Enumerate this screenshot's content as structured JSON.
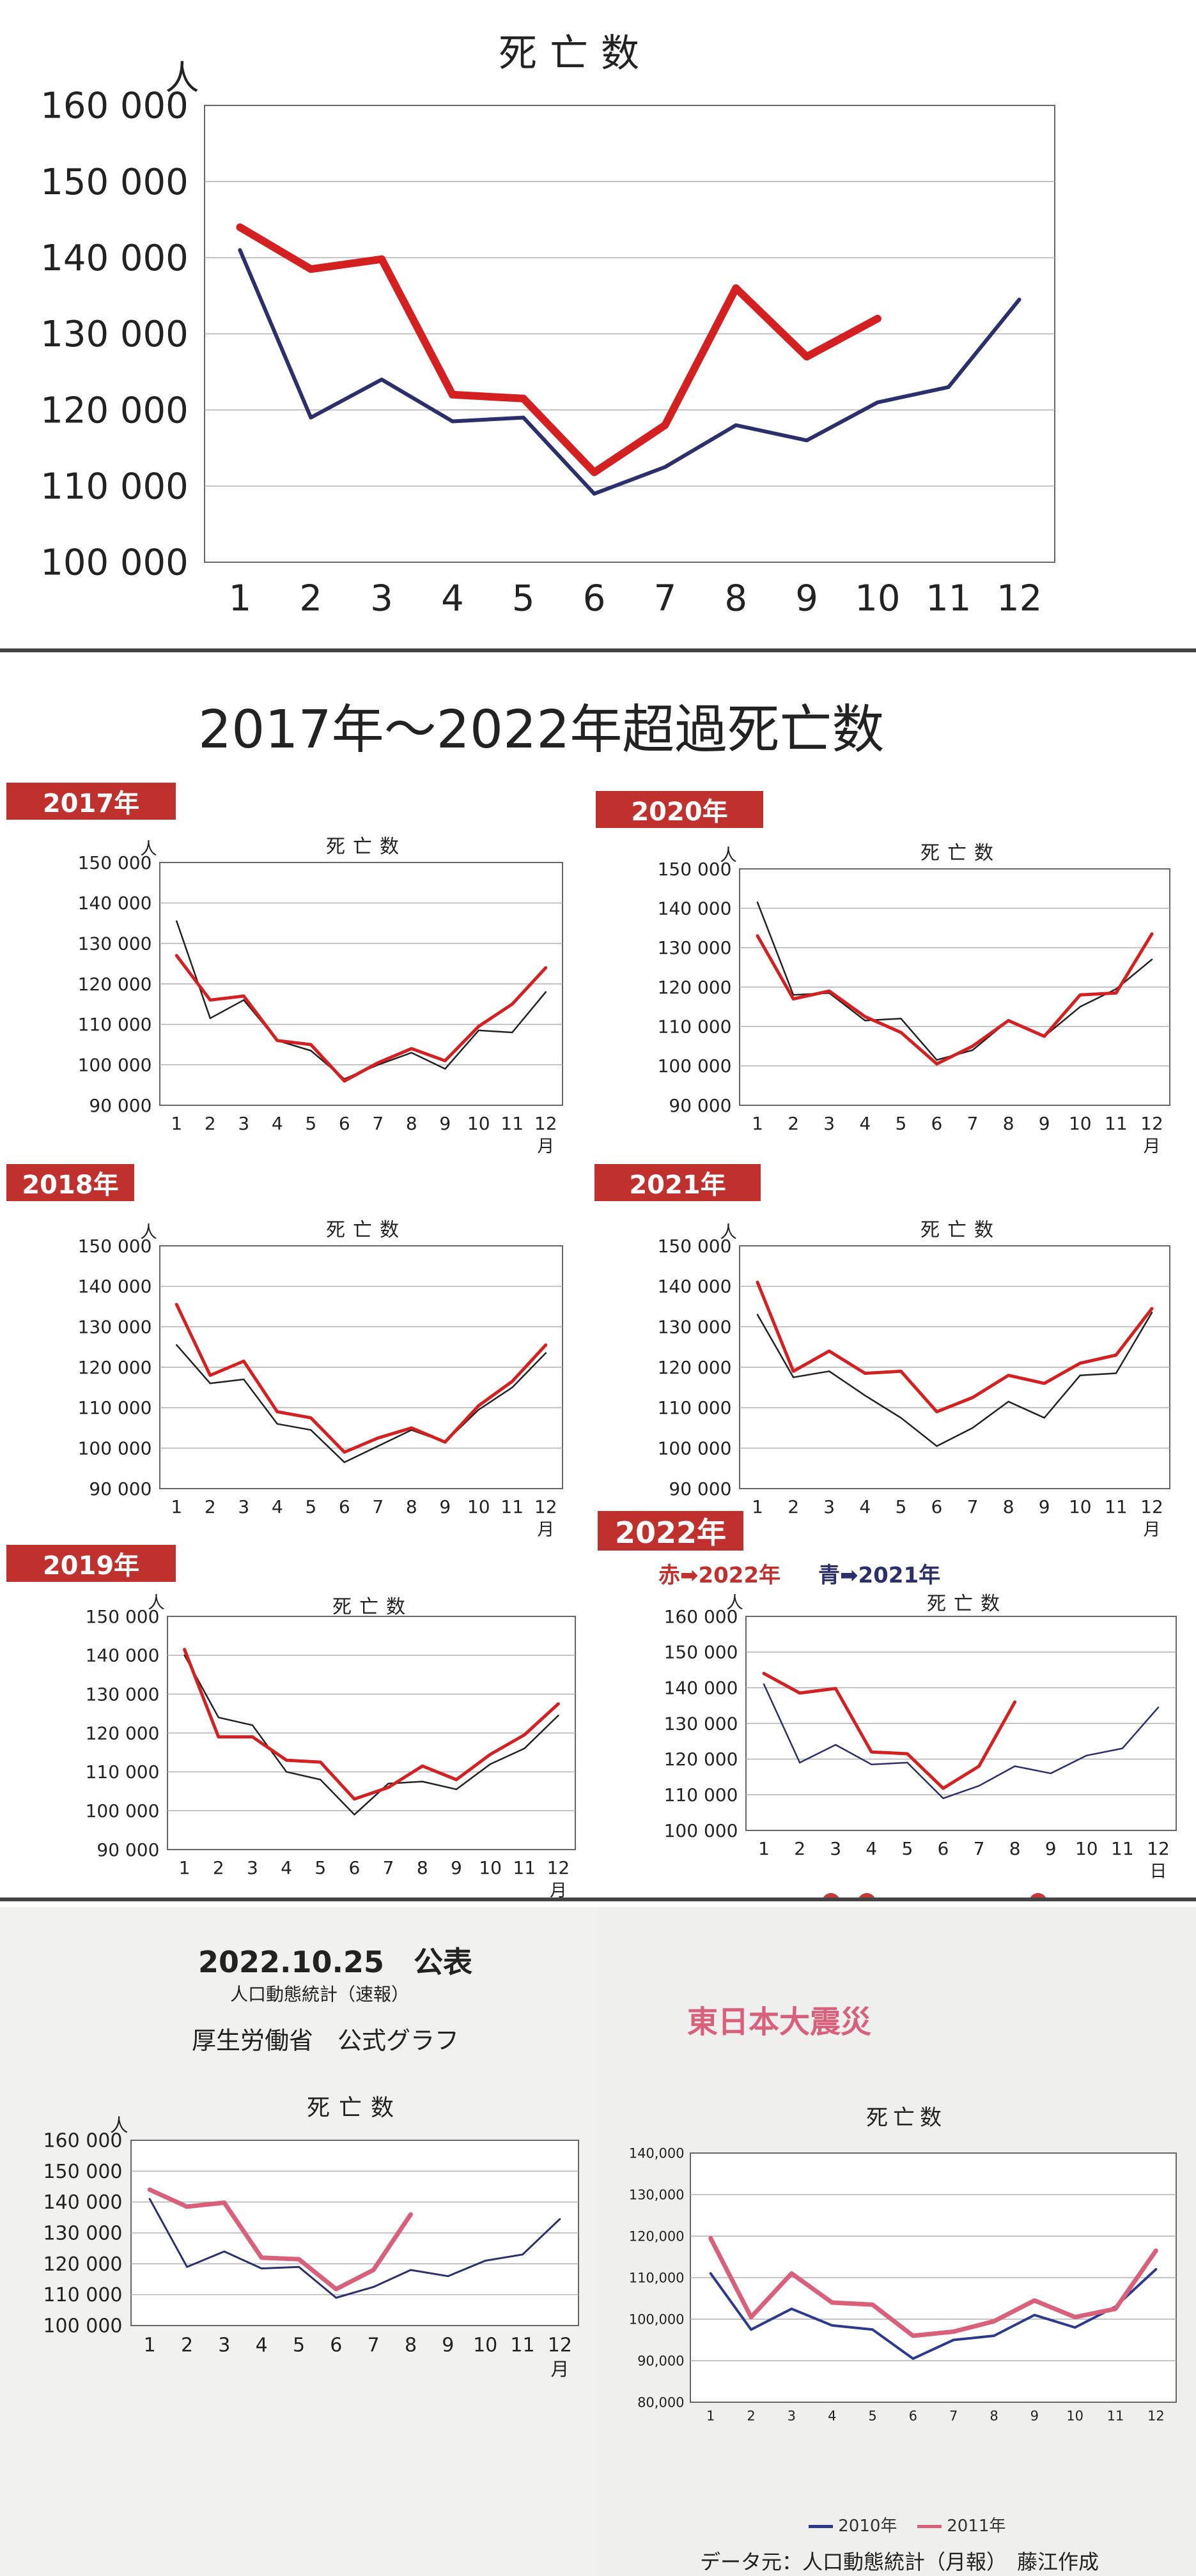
{
  "page_title": "2017年～2022年超過死亡数",
  "badges": {
    "y2017": "2017年",
    "y2018": "2018年",
    "y2019": "2019年",
    "y2020": "2020年",
    "y2021": "2021年",
    "y2022": "2022年"
  },
  "legend_2022": {
    "red": "赤➡2022年",
    "blue": "青➡2021年"
  },
  "publication": {
    "date": "2022.10.25　公表",
    "sub": "人口動態統計（速報）",
    "org": "厚生労働省　公式グラフ"
  },
  "quake_title": "東日本大震災",
  "source_note": "データ元：人口動態統計（月報）　藤江作成",
  "colors": {
    "red": "#d42020",
    "navy": "#2b2f6b",
    "black": "#222222",
    "pink": "#d9607a",
    "blue": "#2b3a8c"
  },
  "chart_data": [
    {
      "id": "top",
      "type": "line",
      "title": "死亡数",
      "ylabel": "人",
      "xlabel": "",
      "x": [
        1,
        2,
        3,
        4,
        5,
        6,
        7,
        8,
        9,
        10,
        11,
        12
      ],
      "ylim": [
        100000,
        160000
      ],
      "yticks": [
        "100 000",
        "110 000",
        "120 000",
        "130 000",
        "140 000",
        "150 000",
        "160 000"
      ],
      "series": [
        {
          "color": "navy",
          "values": [
            141000,
            119000,
            124000,
            118500,
            119000,
            109000,
            112500,
            118000,
            116000,
            121000,
            123000,
            134500
          ]
        },
        {
          "color": "red",
          "values": [
            144000,
            138500,
            139800,
            122000,
            121500,
            111800,
            118000,
            136000,
            127000,
            132000,
            null,
            null
          ]
        }
      ]
    },
    {
      "id": "y2017",
      "type": "line",
      "title": "死亡数",
      "ylabel": "人",
      "xlabel": "月",
      "x": [
        1,
        2,
        3,
        4,
        5,
        6,
        7,
        8,
        9,
        10,
        11,
        12
      ],
      "ylim": [
        90000,
        150000
      ],
      "yticks": [
        "90 000",
        "100 000",
        "110 000",
        "120 000",
        "130 000",
        "140 000",
        "150 000"
      ],
      "series": [
        {
          "color": "black",
          "values": [
            135500,
            111500,
            116000,
            106000,
            103500,
            96500,
            100000,
            103000,
            99000,
            108500,
            108000,
            118000
          ]
        },
        {
          "color": "red",
          "values": [
            127000,
            116000,
            117000,
            106000,
            105000,
            96000,
            100500,
            104000,
            101000,
            109500,
            115000,
            124000
          ]
        }
      ]
    },
    {
      "id": "y2018",
      "type": "line",
      "title": "死亡数",
      "ylabel": "人",
      "xlabel": "月",
      "x": [
        1,
        2,
        3,
        4,
        5,
        6,
        7,
        8,
        9,
        10,
        11,
        12
      ],
      "ylim": [
        90000,
        150000
      ],
      "yticks": [
        "90 000",
        "100 000",
        "110 000",
        "120 000",
        "130 000",
        "140 000",
        "150 000"
      ],
      "series": [
        {
          "color": "black",
          "values": [
            125500,
            116000,
            117000,
            106000,
            104500,
            96500,
            100500,
            104500,
            101500,
            109500,
            115000,
            123500
          ]
        },
        {
          "color": "red",
          "values": [
            135500,
            118000,
            121500,
            109000,
            107500,
            99000,
            102500,
            105000,
            101500,
            110500,
            116500,
            125500
          ]
        }
      ]
    },
    {
      "id": "y2019",
      "type": "line",
      "title": "死亡数",
      "ylabel": "人",
      "xlabel": "月",
      "x": [
        1,
        2,
        3,
        4,
        5,
        6,
        7,
        8,
        9,
        10,
        11,
        12
      ],
      "ylim": [
        90000,
        150000
      ],
      "yticks": [
        "90 000",
        "100 000",
        "110 000",
        "120 000",
        "130 000",
        "140 000",
        "150 000"
      ],
      "series": [
        {
          "color": "black",
          "values": [
            140000,
            124000,
            122000,
            110000,
            108000,
            99000,
            107000,
            107500,
            105500,
            112000,
            116000,
            124500
          ]
        },
        {
          "color": "red",
          "values": [
            141500,
            119000,
            119000,
            113000,
            112500,
            103000,
            106000,
            111500,
            108000,
            114500,
            119500,
            127500
          ]
        }
      ]
    },
    {
      "id": "y2020",
      "type": "line",
      "title": "死亡数",
      "ylabel": "人",
      "xlabel": "月",
      "x": [
        1,
        2,
        3,
        4,
        5,
        6,
        7,
        8,
        9,
        10,
        11,
        12
      ],
      "ylim": [
        90000,
        150000
      ],
      "yticks": [
        "90 000",
        "100 000",
        "110 000",
        "120 000",
        "130 000",
        "140 000",
        "150 000"
      ],
      "series": [
        {
          "color": "black",
          "values": [
            141500,
            118000,
            118500,
            111500,
            112000,
            101500,
            104000,
            111500,
            107500,
            115000,
            119500,
            127000
          ]
        },
        {
          "color": "red",
          "values": [
            133000,
            117000,
            119000,
            112500,
            108500,
            100500,
            105000,
            111500,
            107500,
            118000,
            118500,
            133500
          ]
        }
      ]
    },
    {
      "id": "y2021",
      "type": "line",
      "title": "死亡数",
      "ylabel": "人",
      "xlabel": "月",
      "x": [
        1,
        2,
        3,
        4,
        5,
        6,
        7,
        8,
        9,
        10,
        11,
        12
      ],
      "ylim": [
        90000,
        150000
      ],
      "yticks": [
        "90 000",
        "100 000",
        "110 000",
        "120 000",
        "130 000",
        "140 000",
        "150 000"
      ],
      "series": [
        {
          "color": "black",
          "values": [
            133000,
            117500,
            119000,
            113000,
            107500,
            100500,
            105000,
            111500,
            107500,
            118000,
            118500,
            133500
          ]
        },
        {
          "color": "red",
          "values": [
            141000,
            119000,
            124000,
            118500,
            119000,
            109000,
            112500,
            118000,
            116000,
            121000,
            123000,
            134500
          ]
        }
      ]
    },
    {
      "id": "y2022",
      "type": "line",
      "title": "死亡数",
      "ylabel": "人",
      "xlabel": "日",
      "x": [
        1,
        2,
        3,
        4,
        5,
        6,
        7,
        8,
        9,
        10,
        11,
        12
      ],
      "ylim": [
        100000,
        160000
      ],
      "yticks": [
        "100 000",
        "110 000",
        "120 000",
        "130 000",
        "140 000",
        "150 000",
        "160 000"
      ],
      "series": [
        {
          "color": "navy",
          "values": [
            141000,
            119000,
            124000,
            118500,
            119000,
            109000,
            112500,
            118000,
            116000,
            121000,
            123000,
            134500
          ]
        },
        {
          "color": "red",
          "values": [
            144000,
            138500,
            139800,
            122000,
            121500,
            111800,
            118000,
            136000,
            null,
            null,
            null,
            null
          ]
        }
      ]
    },
    {
      "id": "official",
      "type": "line",
      "title": "死亡数",
      "ylabel": "人",
      "xlabel": "月",
      "x": [
        1,
        2,
        3,
        4,
        5,
        6,
        7,
        8,
        9,
        10,
        11,
        12
      ],
      "ylim": [
        100000,
        160000
      ],
      "yticks": [
        "100 000",
        "110 000",
        "120 000",
        "130 000",
        "140 000",
        "150 000",
        "160 000"
      ],
      "series": [
        {
          "color": "navy",
          "values": [
            141000,
            119000,
            124000,
            118500,
            119000,
            109000,
            112500,
            118000,
            116000,
            121000,
            123000,
            134500
          ]
        },
        {
          "color": "pink",
          "values": [
            144000,
            138500,
            139800,
            122000,
            121500,
            111800,
            118000,
            136000,
            null,
            null,
            null,
            null
          ]
        }
      ]
    },
    {
      "id": "quake",
      "type": "line",
      "title": "死亡数",
      "ylabel": "",
      "xlabel": "",
      "x": [
        1,
        2,
        3,
        4,
        5,
        6,
        7,
        8,
        9,
        10,
        11,
        12
      ],
      "ylim": [
        80000,
        140000
      ],
      "yticks": [
        "80,000",
        "90,000",
        "100,000",
        "110,000",
        "120,000",
        "130,000",
        "140,000"
      ],
      "legend": "bottom-center",
      "series": [
        {
          "name": "2010年",
          "color": "blue",
          "values": [
            111000,
            97500,
            102500,
            98500,
            97500,
            90500,
            95000,
            96000,
            101000,
            98000,
            103000,
            112000
          ]
        },
        {
          "name": "2011年",
          "color": "pink",
          "values": [
            119500,
            100500,
            111000,
            104000,
            103500,
            96000,
            97000,
            99500,
            104500,
            100500,
            102500,
            116500
          ]
        }
      ]
    }
  ]
}
